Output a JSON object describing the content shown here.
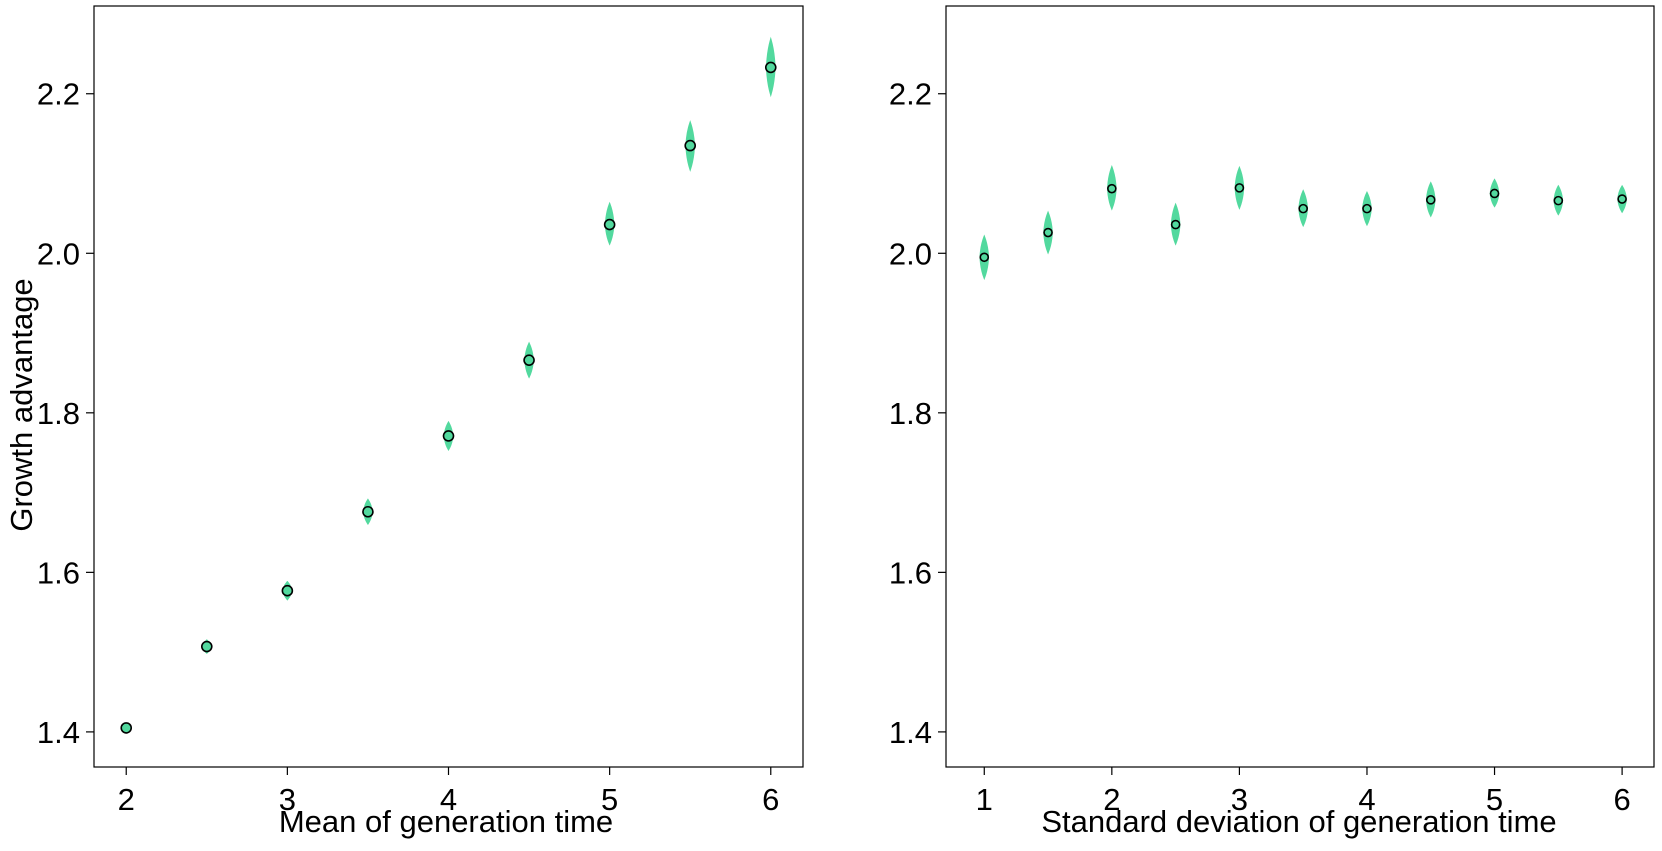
{
  "chart_data": [
    {
      "type": "scatter",
      "title": "",
      "xlabel": "Mean of generation time",
      "ylabel": "Growth advantage",
      "xlim": [
        1.8,
        6.2
      ],
      "ylim": [
        1.356,
        2.31
      ],
      "xticks": [
        2,
        3,
        4,
        5,
        6
      ],
      "xtick_labels": [
        "2",
        "3",
        "4",
        "5",
        "6"
      ],
      "yticks": [
        1.4,
        1.6,
        1.8,
        2.0,
        2.2
      ],
      "ytick_labels": [
        "1.4",
        "1.6",
        "1.8",
        "2.0",
        "2.2"
      ],
      "grid": false,
      "legend": "none",
      "point_color": "#52d99e",
      "marker_edge_color": "#000000",
      "points": [
        {
          "x": 2.0,
          "y": 1.405,
          "lo": 1.4,
          "hi": 1.41
        },
        {
          "x": 2.5,
          "y": 1.507,
          "lo": 1.499,
          "hi": 1.515
        },
        {
          "x": 3.0,
          "y": 1.577,
          "lo": 1.566,
          "hi": 1.588
        },
        {
          "x": 3.5,
          "y": 1.676,
          "lo": 1.661,
          "hi": 1.691
        },
        {
          "x": 4.0,
          "y": 1.771,
          "lo": 1.754,
          "hi": 1.788
        },
        {
          "x": 4.5,
          "y": 1.866,
          "lo": 1.845,
          "hi": 1.887
        },
        {
          "x": 5.0,
          "y": 2.036,
          "lo": 2.012,
          "hi": 2.062
        },
        {
          "x": 5.5,
          "y": 2.135,
          "lo": 2.105,
          "hi": 2.164
        },
        {
          "x": 6.0,
          "y": 2.233,
          "lo": 2.199,
          "hi": 2.268
        }
      ]
    },
    {
      "type": "scatter",
      "title": "",
      "xlabel": "Standard deviation of generation time",
      "ylabel": "",
      "xlim": [
        0.7,
        6.25
      ],
      "ylim": [
        1.356,
        2.31
      ],
      "xticks": [
        1,
        2,
        3,
        4,
        5,
        6
      ],
      "xtick_labels": [
        "1",
        "2",
        "3",
        "4",
        "5",
        "6"
      ],
      "yticks": [
        1.4,
        1.6,
        1.8,
        2.0,
        2.2
      ],
      "ytick_labels": [
        "1.4",
        "1.6",
        "1.8",
        "2.0",
        "2.2"
      ],
      "grid": false,
      "legend": "none",
      "point_color": "#52d99e",
      "marker_edge_color": "#000000",
      "points": [
        {
          "x": 1.0,
          "y": 1.995,
          "lo": 1.969,
          "hi": 2.021
        },
        {
          "x": 1.5,
          "y": 2.026,
          "lo": 2.001,
          "hi": 2.051
        },
        {
          "x": 2.0,
          "y": 2.081,
          "lo": 2.056,
          "hi": 2.108
        },
        {
          "x": 2.5,
          "y": 2.036,
          "lo": 2.012,
          "hi": 2.061
        },
        {
          "x": 3.0,
          "y": 2.082,
          "lo": 2.057,
          "hi": 2.107
        },
        {
          "x": 3.5,
          "y": 2.056,
          "lo": 2.035,
          "hi": 2.078
        },
        {
          "x": 4.0,
          "y": 2.056,
          "lo": 2.036,
          "hi": 2.076
        },
        {
          "x": 4.5,
          "y": 2.067,
          "lo": 2.047,
          "hi": 2.088
        },
        {
          "x": 5.0,
          "y": 2.075,
          "lo": 2.059,
          "hi": 2.092
        },
        {
          "x": 5.5,
          "y": 2.066,
          "lo": 2.049,
          "hi": 2.084
        },
        {
          "x": 6.0,
          "y": 2.068,
          "lo": 2.052,
          "hi": 2.084
        }
      ]
    }
  ]
}
